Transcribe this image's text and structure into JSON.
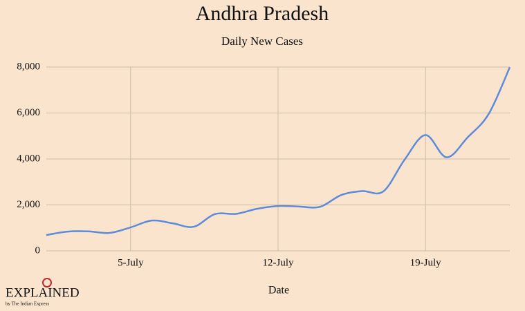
{
  "chart_data": {
    "type": "line",
    "title": "Andhra Pradesh",
    "subtitle": "Daily New Cases",
    "x_label": "Date",
    "categories": [
      null,
      null,
      null,
      null,
      "5-July",
      null,
      null,
      null,
      null,
      null,
      null,
      "12-July",
      null,
      null,
      null,
      null,
      null,
      null,
      "19-July",
      null,
      null,
      null,
      null
    ],
    "series": [
      {
        "name": "Daily New Cases",
        "color": "#5b8bd9",
        "values": [
          690,
          840,
          850,
          780,
          1020,
          1320,
          1200,
          1050,
          1600,
          1610,
          1830,
          1950,
          1930,
          1920,
          2430,
          2600,
          2590,
          3960,
          5040,
          4070,
          4940,
          5960,
          7990
        ]
      }
    ],
    "ylim": [
      0,
      8000
    ],
    "yticks": [
      0,
      {
        "value": 2000,
        "label": "2,000"
      },
      {
        "value": 4000,
        "label": "4,000"
      },
      {
        "value": 6000,
        "label": "6,000"
      },
      {
        "value": 8000,
        "label": "8,000"
      }
    ],
    "grid": true
  },
  "logo": {
    "name": "EXPLAINED",
    "sub": "by The Indian Express"
  }
}
